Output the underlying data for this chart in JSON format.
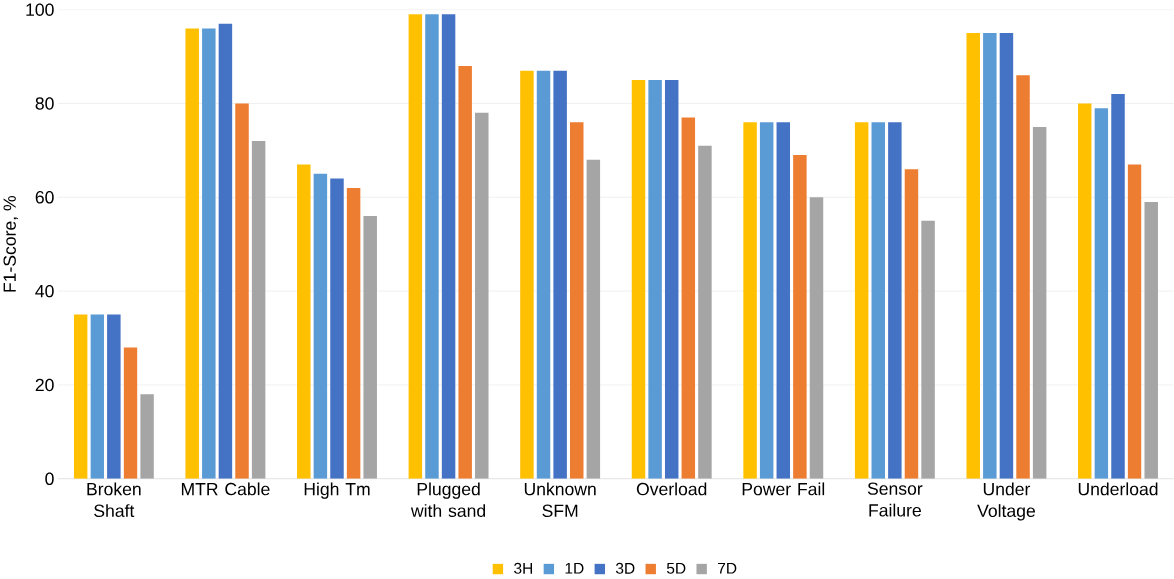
{
  "chart_data": {
    "type": "bar",
    "ylabel": "F1-Score, %",
    "categories": [
      "Broken Shaft",
      "MTR Cable",
      "High Tm",
      "Plugged with sand",
      "Unknown SFM",
      "Overload",
      "Power Fail",
      "Sensor Failure",
      "Under Voltage",
      "Underload"
    ],
    "series": [
      {
        "name": "3H",
        "color": "#ffc000",
        "values": [
          35,
          96,
          67,
          99,
          87,
          85,
          76,
          76,
          95,
          80
        ]
      },
      {
        "name": "1D",
        "color": "#5b9bd5",
        "values": [
          35,
          96,
          65,
          99,
          87,
          85,
          76,
          76,
          95,
          79
        ]
      },
      {
        "name": "3D",
        "color": "#4472c4",
        "values": [
          35,
          97,
          64,
          99,
          87,
          85,
          76,
          76,
          95,
          82
        ]
      },
      {
        "name": "5D",
        "color": "#ed7d31",
        "values": [
          28,
          80,
          62,
          88,
          76,
          77,
          69,
          66,
          86,
          67
        ]
      },
      {
        "name": "7D",
        "color": "#a5a5a5",
        "values": [
          18,
          72,
          56,
          78,
          68,
          71,
          60,
          55,
          75,
          59
        ]
      }
    ],
    "ylim": [
      0,
      100
    ],
    "yticks": [
      0,
      20,
      40,
      60,
      80,
      100
    ],
    "grid": "y",
    "legend": "bottom"
  }
}
